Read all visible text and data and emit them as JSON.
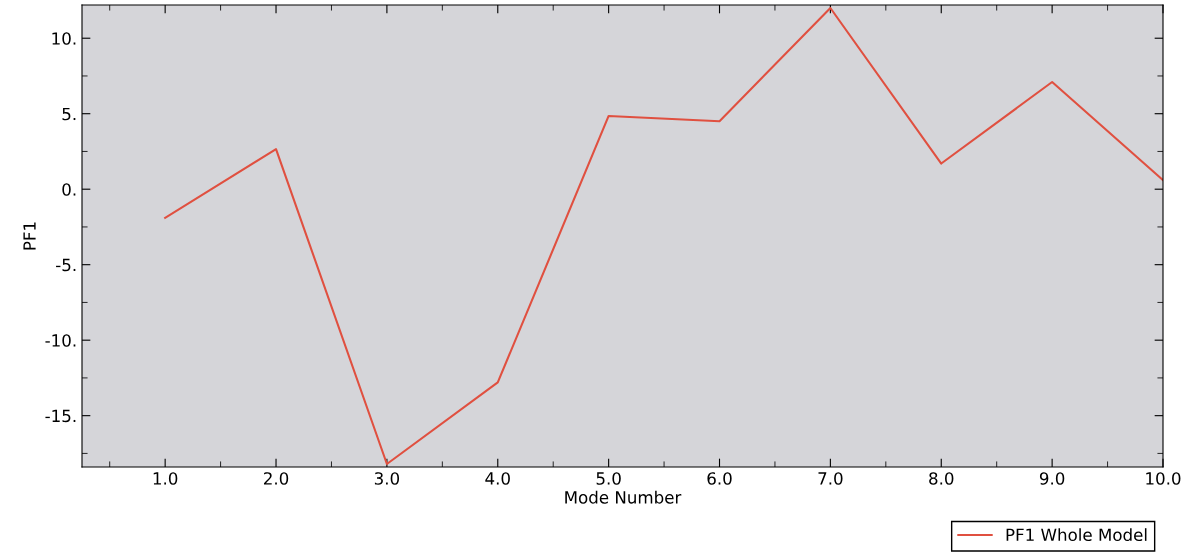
{
  "chart_data": {
    "type": "line",
    "xlabel": "Mode Number",
    "ylabel": "PF1",
    "x": [
      1,
      2,
      3,
      4,
      5,
      6,
      7,
      8,
      9,
      10
    ],
    "series": [
      {
        "name": "PF1 Whole Model",
        "color": "#e05040",
        "values": [
          -1.9,
          2.65,
          -18.2,
          -12.8,
          4.85,
          4.5,
          12.0,
          1.7,
          7.1,
          0.6
        ]
      }
    ],
    "xlim": [
      0.25,
      10
    ],
    "ylim": [
      -18.4,
      12.2
    ],
    "xticks": [
      {
        "value": 1,
        "label": "1.0"
      },
      {
        "value": 2,
        "label": "2.0"
      },
      {
        "value": 3,
        "label": "3.0"
      },
      {
        "value": 4,
        "label": "4.0"
      },
      {
        "value": 5,
        "label": "5.0"
      },
      {
        "value": 6,
        "label": "6.0"
      },
      {
        "value": 7,
        "label": "7.0"
      },
      {
        "value": 8,
        "label": "8.0"
      },
      {
        "value": 9,
        "label": "9.0"
      },
      {
        "value": 10,
        "label": "10.0"
      }
    ],
    "yticks": [
      {
        "value": -15,
        "label": "-15."
      },
      {
        "value": -10,
        "label": "-10."
      },
      {
        "value": -5,
        "label": "-5."
      },
      {
        "value": 0,
        "label": "0."
      },
      {
        "value": 5,
        "label": "5."
      },
      {
        "value": 10,
        "label": "10."
      }
    ],
    "grid": false,
    "legend": "bottom right",
    "marker": "none",
    "line_style": "solid"
  }
}
